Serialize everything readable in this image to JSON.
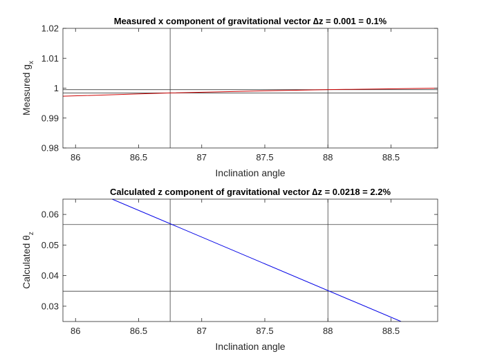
{
  "chart_data": [
    {
      "type": "line",
      "title_main": "Measured x component of gravitational vector ",
      "title_delta": "∆z = 0.001 = 0.1%",
      "xlabel": "Inclination angle",
      "ylabel_main": "Measured g",
      "ylabel_sub": "x",
      "xlim": [
        85.9,
        88.87
      ],
      "ylim": [
        0.98,
        1.02
      ],
      "xticks": [
        86,
        86.5,
        87,
        87.5,
        88,
        88.5
      ],
      "xtick_labels": [
        "86",
        "86.5",
        "87",
        "87.5",
        "88",
        "88.5"
      ],
      "yticks": [
        0.98,
        0.99,
        1.0,
        1.01,
        1.02
      ],
      "ytick_labels": [
        "0.98",
        "0.99",
        "1",
        "1.01",
        "1.02"
      ],
      "ref_vlines": [
        86.75,
        88.0
      ],
      "ref_hlines": [
        0.9984,
        0.9995
      ],
      "series": [
        {
          "color": "#cc0000",
          "x": [
            85.9,
            86.75,
            87.5,
            88.0,
            88.87
          ],
          "y": [
            0.9973,
            0.9984,
            0.9991,
            0.9995,
            1.0
          ]
        }
      ],
      "grid": false
    },
    {
      "type": "line",
      "title_main": "Calculated z component of gravitational vector ",
      "title_delta": "∆z = 0.0218 = 2.2%",
      "xlabel": "Inclination angle",
      "ylabel_main": "Calculated θ",
      "ylabel_sub": "z",
      "xlim": [
        85.9,
        88.87
      ],
      "ylim": [
        0.025,
        0.065
      ],
      "xticks": [
        86,
        86.5,
        87,
        87.5,
        88,
        88.5
      ],
      "xtick_labels": [
        "86",
        "86.5",
        "87",
        "87.5",
        "88",
        "88.5"
      ],
      "yticks": [
        0.03,
        0.04,
        0.05,
        0.06
      ],
      "ytick_labels": [
        "0.03",
        "0.04",
        "0.05",
        "0.06"
      ],
      "ref_vlines": [
        86.75,
        88.0
      ],
      "ref_hlines": [
        0.0567,
        0.0349
      ],
      "series": [
        {
          "color": "#0000e6",
          "x": [
            86.29,
            88.58
          ],
          "y": [
            0.065,
            0.025
          ]
        }
      ],
      "grid": false
    }
  ]
}
